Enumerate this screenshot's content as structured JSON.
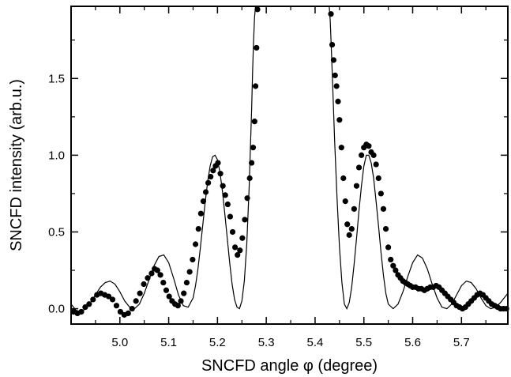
{
  "chart_data": {
    "type": "scatter",
    "xlabel": "SNCFD angle φ (degree)",
    "ylabel": "SNCFD intensity (arb.u.)",
    "xlim": [
      4.9,
      5.795
    ],
    "ylim": [
      -0.1,
      1.97
    ],
    "xticks": [
      "5.0",
      "5.1",
      "5.2",
      "5.3",
      "5.4",
      "5.5",
      "5.6",
      "5.7"
    ],
    "yticks": [
      "0.0",
      "0.5",
      "1.0",
      "1.5"
    ],
    "xtick_values": [
      5.0,
      5.1,
      5.2,
      5.3,
      5.4,
      5.5,
      5.6,
      5.7
    ],
    "ytick_values": [
      0.0,
      0.5,
      1.0,
      1.5
    ],
    "grid": false,
    "series": [
      {
        "style": "markers",
        "color": "#000000",
        "x": [
          4.905,
          4.913,
          4.921,
          4.929,
          4.937,
          4.945,
          4.953,
          4.961,
          4.969,
          4.977,
          4.985,
          4.993,
          5.001,
          5.009,
          5.017,
          5.025,
          5.033,
          5.041,
          5.049,
          5.057,
          5.065,
          5.071,
          5.077,
          5.083,
          5.089,
          5.095,
          5.101,
          5.107,
          5.113,
          5.119,
          5.125,
          5.131,
          5.137,
          5.143,
          5.149,
          5.155,
          5.161,
          5.166,
          5.171,
          5.176,
          5.181,
          5.186,
          5.191,
          5.196,
          5.201,
          5.206,
          5.211,
          5.216,
          5.221,
          5.226,
          5.231,
          5.236,
          5.241,
          5.246,
          5.251,
          5.256,
          5.261,
          5.266,
          5.27,
          5.273,
          5.276,
          5.278,
          5.28,
          5.282,
          5.4325,
          5.435,
          5.438,
          5.441,
          5.444,
          5.447,
          5.45,
          5.454,
          5.458,
          5.462,
          5.466,
          5.47,
          5.475,
          5.48,
          5.485,
          5.49,
          5.495,
          5.5,
          5.505,
          5.51,
          5.515,
          5.52,
          5.525,
          5.53,
          5.535,
          5.54,
          5.545,
          5.55,
          5.555,
          5.56,
          5.565,
          5.57,
          5.575,
          5.58,
          5.585,
          5.59,
          5.595,
          5.6,
          5.606,
          5.612,
          5.618,
          5.624,
          5.63,
          5.636,
          5.642,
          5.648,
          5.654,
          5.66,
          5.666,
          5.672,
          5.678,
          5.684,
          5.69,
          5.696,
          5.702,
          5.708,
          5.714,
          5.72,
          5.726,
          5.732,
          5.738,
          5.744,
          5.75,
          5.756,
          5.762,
          5.768,
          5.774,
          5.78,
          5.786,
          5.792
        ],
        "y": [
          -0.02,
          -0.03,
          -0.02,
          0.01,
          0.03,
          0.06,
          0.09,
          0.1,
          0.09,
          0.08,
          0.06,
          0.02,
          -0.02,
          -0.04,
          -0.03,
          0.0,
          0.05,
          0.1,
          0.16,
          0.2,
          0.23,
          0.26,
          0.25,
          0.22,
          0.17,
          0.12,
          0.08,
          0.05,
          0.03,
          0.02,
          0.05,
          0.1,
          0.17,
          0.24,
          0.32,
          0.42,
          0.52,
          0.62,
          0.7,
          0.76,
          0.82,
          0.86,
          0.9,
          0.93,
          0.95,
          0.88,
          0.8,
          0.74,
          0.68,
          0.6,
          0.5,
          0.4,
          0.35,
          0.38,
          0.46,
          0.58,
          0.72,
          0.85,
          0.95,
          1.05,
          1.22,
          1.45,
          1.7,
          1.95,
          1.92,
          1.72,
          1.62,
          1.52,
          1.45,
          1.35,
          1.23,
          1.05,
          0.85,
          0.7,
          0.55,
          0.48,
          0.52,
          0.65,
          0.8,
          0.92,
          1.0,
          1.05,
          1.07,
          1.06,
          1.02,
          1.0,
          0.94,
          0.85,
          0.75,
          0.65,
          0.52,
          0.4,
          0.32,
          0.28,
          0.25,
          0.22,
          0.2,
          0.18,
          0.17,
          0.16,
          0.15,
          0.14,
          0.14,
          0.13,
          0.13,
          0.12,
          0.13,
          0.14,
          0.14,
          0.15,
          0.14,
          0.12,
          0.1,
          0.08,
          0.06,
          0.04,
          0.02,
          0.01,
          0.0,
          0.01,
          0.03,
          0.05,
          0.07,
          0.09,
          0.1,
          0.09,
          0.07,
          0.05,
          0.03,
          0.02,
          0.01,
          0.0,
          0.0,
          0.0
        ]
      },
      {
        "style": "line",
        "color": "#000000",
        "x": [
          4.9,
          4.91,
          4.92,
          4.93,
          4.94,
          4.95,
          4.96,
          4.97,
          4.98,
          4.99,
          5.0,
          5.01,
          5.02,
          5.03,
          5.04,
          5.05,
          5.06,
          5.07,
          5.08,
          5.09,
          5.1,
          5.11,
          5.12,
          5.13,
          5.14,
          5.15,
          5.155,
          5.16,
          5.165,
          5.17,
          5.175,
          5.18,
          5.185,
          5.19,
          5.195,
          5.2,
          5.205,
          5.21,
          5.215,
          5.22,
          5.225,
          5.23,
          5.235,
          5.24,
          5.245,
          5.25,
          5.255,
          5.26,
          5.265,
          5.27,
          5.272,
          5.274,
          5.276,
          5.278,
          5.429,
          5.431,
          5.433,
          5.435,
          5.44,
          5.445,
          5.45,
          5.455,
          5.46,
          5.465,
          5.47,
          5.475,
          5.48,
          5.485,
          5.49,
          5.495,
          5.5,
          5.505,
          5.51,
          5.515,
          5.52,
          5.525,
          5.53,
          5.535,
          5.54,
          5.545,
          5.55,
          5.56,
          5.57,
          5.58,
          5.59,
          5.6,
          5.61,
          5.62,
          5.63,
          5.64,
          5.65,
          5.66,
          5.67,
          5.68,
          5.69,
          5.7,
          5.71,
          5.72,
          5.73,
          5.74,
          5.75,
          5.76,
          5.77,
          5.78,
          5.79,
          5.795
        ],
        "y": [
          0.03,
          -0.01,
          -0.02,
          0.0,
          0.04,
          0.09,
          0.14,
          0.17,
          0.18,
          0.16,
          0.11,
          0.05,
          0.01,
          0.0,
          0.03,
          0.1,
          0.19,
          0.28,
          0.34,
          0.35,
          0.3,
          0.2,
          0.09,
          0.02,
          0.01,
          0.07,
          0.15,
          0.26,
          0.4,
          0.55,
          0.7,
          0.83,
          0.93,
          0.99,
          1.0,
          0.97,
          0.89,
          0.77,
          0.62,
          0.46,
          0.3,
          0.16,
          0.06,
          0.01,
          0.0,
          0.05,
          0.18,
          0.42,
          0.8,
          1.3,
          1.55,
          1.75,
          1.9,
          1.98,
          1.98,
          1.88,
          1.72,
          1.55,
          1.1,
          0.72,
          0.4,
          0.17,
          0.03,
          0.0,
          0.04,
          0.14,
          0.29,
          0.46,
          0.64,
          0.8,
          0.93,
          1.0,
          1.0,
          0.95,
          0.85,
          0.7,
          0.54,
          0.37,
          0.22,
          0.1,
          0.03,
          0.0,
          0.03,
          0.11,
          0.21,
          0.3,
          0.35,
          0.33,
          0.26,
          0.16,
          0.07,
          0.01,
          0.0,
          0.03,
          0.09,
          0.15,
          0.18,
          0.17,
          0.13,
          0.07,
          0.02,
          0.0,
          0.01,
          0.04,
          0.08,
          0.1
        ]
      }
    ]
  }
}
